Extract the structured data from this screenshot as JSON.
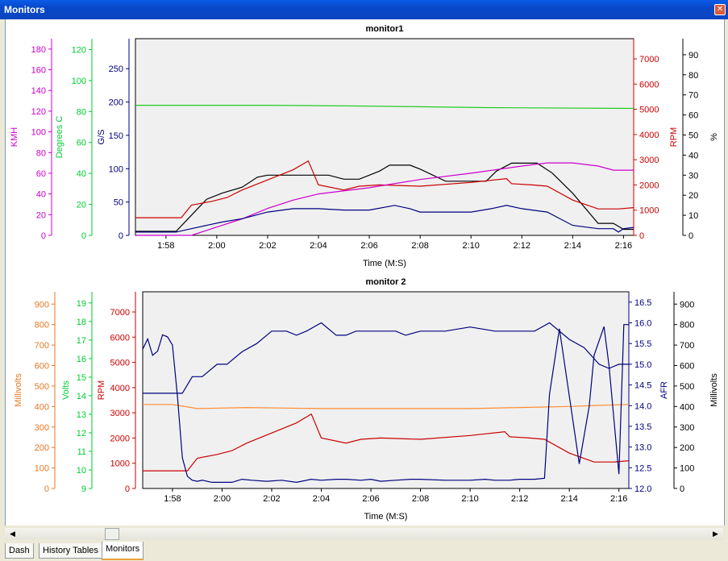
{
  "window": {
    "title": "Monitors",
    "close_glyph": "✕"
  },
  "tabs": [
    "Dash",
    "History Tables",
    "Monitors"
  ],
  "active_tab": "Monitors",
  "scrollbar": {
    "left_glyph": "◀",
    "right_glyph": "▶"
  },
  "chart_data": [
    {
      "type": "line",
      "title": "monitor1",
      "xlabel": "Time (M:S)",
      "x_range": [
        "1:56.8",
        "2:16.4"
      ],
      "x_ticks": [
        "1:58",
        "2:00",
        "2:02",
        "2:04",
        "2:06",
        "2:08",
        "2:10",
        "2:12",
        "2:14",
        "2:16"
      ],
      "axes": [
        {
          "id": "kmh",
          "label": "KMH",
          "side": "left",
          "color": "#cc00cc",
          "range": [
            0,
            190
          ],
          "ticks": [
            0,
            20,
            40,
            60,
            80,
            100,
            120,
            140,
            160,
            180
          ]
        },
        {
          "id": "degc",
          "label": "Degrees C",
          "side": "left",
          "color": "#00cc33",
          "range": [
            0,
            127
          ],
          "ticks": [
            0,
            20,
            40,
            60,
            80,
            100,
            120
          ]
        },
        {
          "id": "gs",
          "label": "G/S",
          "side": "left",
          "color": "#000080",
          "range": [
            0,
            295
          ],
          "ticks": [
            0,
            50,
            100,
            150,
            200,
            250
          ]
        },
        {
          "id": "rpm",
          "label": "RPM",
          "side": "right",
          "color": "#cc0000",
          "range": [
            0,
            7800
          ],
          "ticks": [
            0,
            1000,
            2000,
            3000,
            4000,
            5000,
            6000,
            7000
          ]
        },
        {
          "id": "pct",
          "label": "%",
          "side": "right",
          "color": "#000000",
          "range": [
            0,
            98
          ],
          "ticks": [
            0,
            10,
            20,
            30,
            40,
            50,
            60,
            70,
            80,
            90
          ]
        }
      ],
      "series": [
        {
          "axis": "degc",
          "color": "#22cc22",
          "x": [
            "1:56.8",
            "2:02",
            "2:06",
            "2:10.6",
            "2:16.4"
          ],
          "y": [
            84,
            84,
            83.5,
            82.5,
            82
          ]
        },
        {
          "axis": "pct",
          "color": "#000000",
          "x": [
            "1:56.8",
            "1:58.4",
            "1:59",
            "1:59.6",
            "2:00.2",
            "2:01",
            "2:01.6",
            "2:02",
            "2:03.8",
            "2:04.4",
            "2:05",
            "2:05.6",
            "2:06.4",
            "2:06.8",
            "2:07.6",
            "2:08",
            "2:09",
            "2:10",
            "2:10.6",
            "2:11",
            "2:11.6",
            "2:12.6",
            "2:13.2",
            "2:14",
            "2:15",
            "2:15.6",
            "2:16",
            "2:16.4"
          ],
          "y": [
            2,
            2,
            10,
            18,
            21,
            24,
            29,
            30,
            30,
            30,
            28,
            28,
            32,
            35,
            35,
            33,
            27,
            27,
            27,
            32,
            36,
            36,
            31,
            21,
            6,
            6,
            3,
            3
          ]
        },
        {
          "axis": "rpm",
          "color": "#cc0000",
          "x": [
            "1:56.8",
            "1:58.6",
            "1:59",
            "1:59.8",
            "2:00.4",
            "2:01",
            "2:02",
            "2:03",
            "2:03.6",
            "2:04",
            "2:05",
            "2:05.6",
            "2:06.4",
            "2:08",
            "2:10",
            "2:11.4",
            "2:11.6",
            "2:12.4",
            "2:13",
            "2:14",
            "2:15",
            "2:15.8",
            "2:16.4"
          ],
          "y": [
            700,
            700,
            1200,
            1350,
            1500,
            1800,
            2200,
            2600,
            2950,
            2000,
            1800,
            1950,
            2000,
            1950,
            2100,
            2250,
            2050,
            2000,
            1950,
            1400,
            1050,
            1050,
            1100
          ]
        },
        {
          "axis": "kmh",
          "color": "#cc00cc",
          "x": [
            "1:56.8",
            "1:59",
            "2:00",
            "2:01",
            "2:02",
            "2:03",
            "2:04",
            "2:06",
            "2:08",
            "2:10",
            "2:12",
            "2:13",
            "2:14",
            "2:15",
            "2:15.6",
            "2:16.4"
          ],
          "y": [
            0,
            0,
            8,
            16,
            26,
            34,
            40,
            46,
            54,
            60,
            67,
            70,
            70,
            67,
            63,
            63
          ]
        },
        {
          "axis": "gs",
          "color": "#000080",
          "x": [
            "1:56.8",
            "1:58.4",
            "1:59",
            "1:59.6",
            "2:00.2",
            "2:01",
            "2:02",
            "2:03",
            "2:04",
            "2:05",
            "2:06",
            "2:07",
            "2:07.6",
            "2:08",
            "2:09",
            "2:10",
            "2:10.8",
            "2:11.4",
            "2:12",
            "2:13",
            "2:14",
            "2:15",
            "2:15.6",
            "2:15.8",
            "2:16",
            "2:16.4"
          ],
          "y": [
            5,
            5,
            10,
            15,
            20,
            25,
            35,
            40,
            40,
            38,
            38,
            45,
            40,
            35,
            35,
            35,
            40,
            45,
            40,
            35,
            15,
            10,
            10,
            5,
            10,
            12
          ]
        }
      ]
    },
    {
      "type": "line",
      "title": "monitor 2",
      "xlabel": "Time (M:S)",
      "x_range": [
        "1:56.8",
        "2:16.4"
      ],
      "x_ticks": [
        "1:58",
        "2:00",
        "2:02",
        "2:04",
        "2:06",
        "2:08",
        "2:10",
        "2:12",
        "2:14",
        "2:16"
      ],
      "axes": [
        {
          "id": "mv_l",
          "label": "Millivolts",
          "side": "left",
          "color": "#e87722",
          "range": [
            0,
            960
          ],
          "ticks": [
            0,
            100,
            200,
            300,
            400,
            500,
            600,
            700,
            800,
            900
          ]
        },
        {
          "id": "volts",
          "label": "Volts",
          "side": "left",
          "color": "#00cc33",
          "range": [
            9,
            19.6
          ],
          "ticks": [
            9,
            10,
            11,
            12,
            13,
            14,
            15,
            16,
            17,
            18,
            19
          ]
        },
        {
          "id": "rpm2",
          "label": "RPM",
          "side": "left",
          "color": "#cc0000",
          "range": [
            0,
            7800
          ],
          "ticks": [
            0,
            1000,
            2000,
            3000,
            4000,
            5000,
            6000,
            7000
          ]
        },
        {
          "id": "afr",
          "label": "AFR",
          "side": "right",
          "color": "#000080",
          "range": [
            12,
            16.75
          ],
          "ticks": [
            12.0,
            12.5,
            13.0,
            13.5,
            14.0,
            14.5,
            15.0,
            15.5,
            16.0,
            16.5
          ],
          "tick_decimals": 1
        },
        {
          "id": "mv_r",
          "label": "Millivolts",
          "side": "right",
          "color": "#000000",
          "range": [
            0,
            960
          ],
          "ticks": [
            0,
            100,
            200,
            300,
            400,
            500,
            600,
            700,
            800,
            900
          ]
        }
      ],
      "series": [
        {
          "axis": "mv_l",
          "color": "#ff8c33",
          "x": [
            "1:56.8",
            "1:58",
            "1:59",
            "2:01",
            "2:04",
            "2:06",
            "2:10",
            "2:12",
            "2:14",
            "2:15",
            "2:16.4"
          ],
          "y": [
            410,
            410,
            390,
            395,
            390,
            390,
            390,
            395,
            400,
            405,
            410
          ]
        },
        {
          "axis": "rpm2",
          "color": "#cc0000",
          "x": [
            "1:56.8",
            "1:58.6",
            "1:59",
            "1:59.8",
            "2:00.4",
            "2:01",
            "2:02",
            "2:03",
            "2:03.6",
            "2:04",
            "2:05",
            "2:05.6",
            "2:06.4",
            "2:08",
            "2:10",
            "2:11.4",
            "2:11.6",
            "2:12.4",
            "2:13",
            "2:14",
            "2:15",
            "2:15.8",
            "2:16.4"
          ],
          "y": [
            700,
            700,
            1200,
            1350,
            1500,
            1800,
            2200,
            2600,
            2950,
            2000,
            1800,
            1950,
            2000,
            1950,
            2100,
            2250,
            2050,
            2000,
            1950,
            1400,
            1050,
            1050,
            1100
          ]
        },
        {
          "axis": "afr",
          "color": "#000080",
          "x": [
            "1:56.8",
            "1:58.4",
            "1:58.8",
            "1:59.2",
            "1:59.8",
            "2:00.2",
            "2:00.8",
            "2:01.4",
            "2:02",
            "2:02.6",
            "2:03",
            "2:03.4",
            "2:04",
            "2:04.6",
            "2:05",
            "2:05.4",
            "2:06",
            "2:07",
            "2:07.4",
            "2:08",
            "2:09",
            "2:10",
            "2:11",
            "2:11.6",
            "2:12",
            "2:12.6",
            "2:13.2",
            "2:13.6",
            "2:14",
            "2:14.6",
            "2:15.2",
            "2:15.6",
            "2:16",
            "2:16.4"
          ],
          "y": [
            14.3,
            14.3,
            14.7,
            14.7,
            15.0,
            15.0,
            15.3,
            15.5,
            15.8,
            15.8,
            15.7,
            15.8,
            16.0,
            15.7,
            15.7,
            15.8,
            15.8,
            15.8,
            15.7,
            15.8,
            15.8,
            15.9,
            15.8,
            15.8,
            15.8,
            15.8,
            16.0,
            15.8,
            15.6,
            15.4,
            15.0,
            14.9,
            15.0,
            15.0
          ]
        },
        {
          "axis": "mv_r",
          "color": "#000080",
          "x": [
            "1:56.8",
            "1:57",
            "1:57.2",
            "1:57.4",
            "1:57.6",
            "1:57.8",
            "1:58",
            "1:58.2",
            "1:58.4",
            "1:58.6",
            "1:58.8",
            "1:59",
            "1:59.2",
            "1:59.6",
            "2:00",
            "2:00.4",
            "2:00.8",
            "2:01.2",
            "2:01.8",
            "2:02.4",
            "2:03",
            "2:03.6",
            "2:04",
            "2:04.6",
            "2:05",
            "2:05.6",
            "2:06",
            "2:06.4",
            "2:07",
            "2:07.6",
            "2:08",
            "2:09",
            "2:10",
            "2:10.6",
            "2:11",
            "2:11.6",
            "2:12",
            "2:12.6",
            "2:13",
            "2:13.2",
            "2:13.6",
            "2:14",
            "2:14.4",
            "2:14.8",
            "2:15",
            "2:15.4",
            "2:15.6",
            "2:16",
            "2:16.2",
            "2:16.4"
          ],
          "y": [
            680,
            730,
            650,
            670,
            750,
            740,
            700,
            450,
            150,
            60,
            40,
            35,
            40,
            30,
            30,
            30,
            45,
            40,
            35,
            40,
            30,
            45,
            40,
            45,
            45,
            40,
            45,
            35,
            40,
            45,
            45,
            40,
            40,
            45,
            40,
            40,
            45,
            45,
            50,
            460,
            780,
            450,
            120,
            400,
            650,
            790,
            600,
            70,
            800,
            800
          ]
        }
      ]
    }
  ]
}
